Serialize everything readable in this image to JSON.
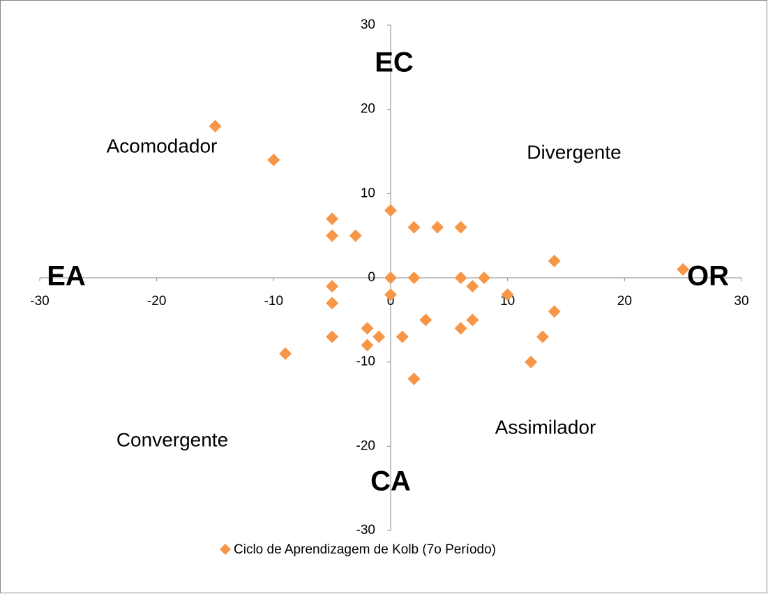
{
  "chart_data": {
    "type": "scatter",
    "series": [
      {
        "name": "Ciclo de Aprendizagem de Kolb (7o Período)",
        "color": "#f79646",
        "x": [
          -15,
          -10,
          -5,
          -5,
          -3,
          0,
          2,
          4,
          6,
          0,
          2,
          6,
          8,
          7,
          -5,
          -5,
          0,
          10,
          14,
          14,
          25,
          3,
          7,
          6,
          -2,
          -5,
          -1,
          1,
          13,
          -2,
          -9,
          12,
          2
        ],
        "values": [
          18,
          14,
          7,
          5,
          5,
          8,
          6,
          6,
          6,
          0,
          0,
          0,
          0,
          -1,
          -1,
          -3,
          -2,
          -2,
          2,
          -4,
          1,
          -5,
          -5,
          -6,
          -6,
          -7,
          -7,
          -7,
          -7,
          -8,
          -9,
          -10,
          -12
        ]
      }
    ],
    "xlim": [
      -30,
      30
    ],
    "xticks": [
      -30,
      -20,
      -10,
      0,
      10,
      20,
      30
    ],
    "ylim": [
      -30,
      30
    ],
    "yticks": [
      -30,
      -20,
      -10,
      0,
      10,
      20,
      30
    ],
    "annotations": [
      "EC",
      "CA",
      "EA",
      "OR",
      "Acomodador",
      "Divergente",
      "Convergente",
      "Assimilador"
    ]
  }
}
